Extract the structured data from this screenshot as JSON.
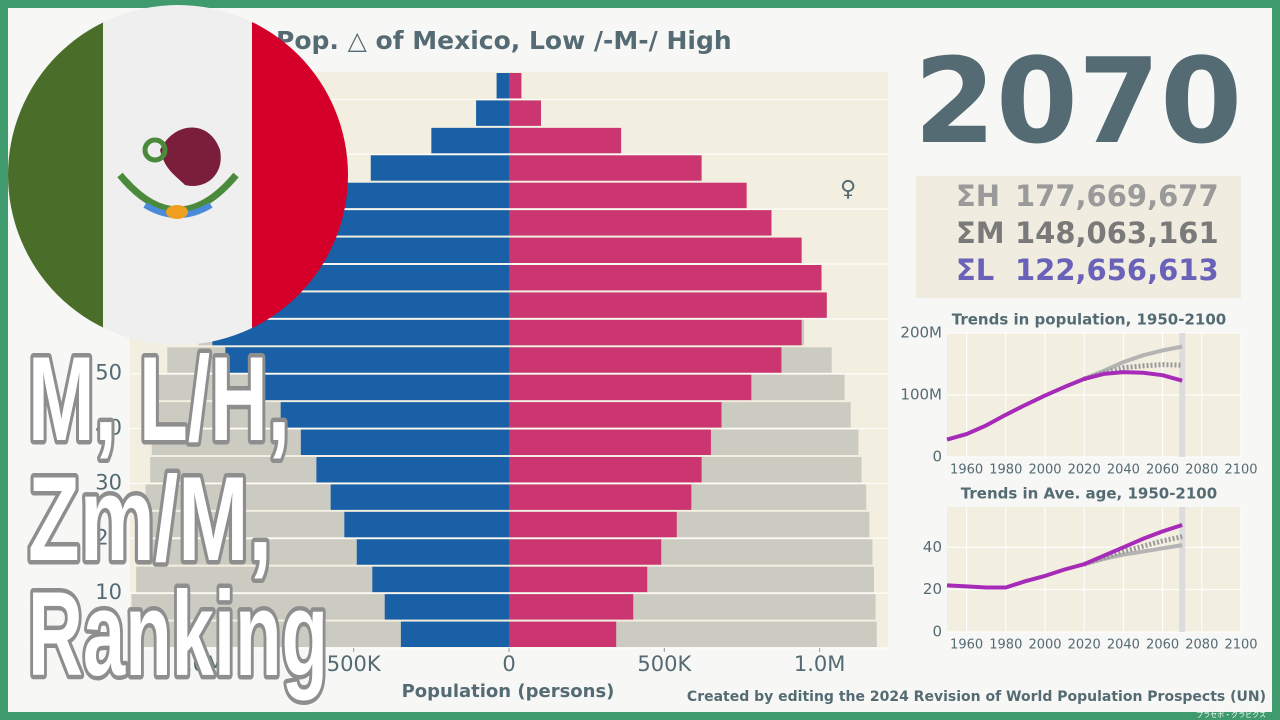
{
  "year": "2070",
  "totals": [
    {
      "label": "ΣH",
      "value": "177,669,677",
      "color": "#9a9a9a"
    },
    {
      "label": "ΣM",
      "value": "148,063,161",
      "color": "#7a7a7a"
    },
    {
      "label": "ΣL",
      "value": "122,656,613",
      "color": "#6a62b8"
    }
  ],
  "overlay": [
    "M, L/H,",
    "Zm/M,",
    "Ranking"
  ],
  "female_symbol": "♀",
  "credit": "Created by editing the 2024 Revision of World Population Prospects (UN)",
  "watermark": "プラセボ・グラビクス",
  "chart_data": [
    {
      "type": "pyramid",
      "title": "Pop. △ of Mexico, Low /-M-/ High",
      "x_label": "Population (persons)",
      "ages": [
        0,
        5,
        10,
        15,
        20,
        25,
        30,
        35,
        40,
        45,
        50,
        55,
        60,
        65,
        70,
        75,
        80,
        85,
        90,
        95,
        100
      ],
      "xlim": [
        -1220000,
        1220000
      ],
      "xticks": [
        {
          "value": -1000000,
          "label": "1.0M"
        },
        {
          "value": -500000,
          "label": "500K"
        },
        0,
        {
          "value": 500000,
          "label": "500K"
        },
        {
          "value": 1000000,
          "label": "1.0M"
        }
      ],
      "ylim": [
        0,
        105
      ],
      "yticks": [
        0,
        10,
        20,
        30,
        40,
        50,
        60,
        70,
        80,
        90,
        100
      ],
      "series": [
        {
          "side": "left",
          "color": "#cbcbc2",
          "values": [
            1220000,
            1215000,
            1200000,
            1190000,
            1180000,
            1170000,
            1155000,
            1150000,
            1150000,
            1140000,
            1100000,
            1000000,
            null,
            null,
            null,
            null,
            null,
            null,
            null,
            null,
            null
          ]
        },
        {
          "side": "right",
          "color": "#cbcbc2",
          "values": [
            1184000,
            1180000,
            1175000,
            1170000,
            1160000,
            1150000,
            1135000,
            1125000,
            1100000,
            1080000,
            1039000,
            950000,
            null,
            null,
            null,
            null,
            null,
            null,
            null,
            null,
            null
          ]
        },
        {
          "side": "left",
          "color": "#1a60a6",
          "values": [
            348000,
            400000,
            440000,
            490000,
            530000,
            574000,
            620000,
            670000,
            735000,
            830000,
            913000,
            955000,
            945000,
            897000,
            832000,
            735000,
            606000,
            445000,
            250000,
            106000,
            40000
          ]
        },
        {
          "side": "right",
          "color": "#cc3670",
          "values": [
            345000,
            400000,
            445000,
            490000,
            540000,
            587000,
            620000,
            650000,
            684000,
            780000,
            877000,
            942000,
            1023000,
            1006000,
            942000,
            845000,
            765000,
            620000,
            361000,
            103000,
            40000
          ]
        }
      ]
    },
    {
      "type": "line",
      "title": "Trends in population, 1950-2100",
      "x": [
        1950,
        1960,
        1970,
        1980,
        1990,
        2000,
        2010,
        2020,
        2030,
        2040,
        2050,
        2060,
        2070
      ],
      "xlim": [
        1950,
        2100
      ],
      "xticks": [
        1960,
        1980,
        2000,
        2020,
        2040,
        2060,
        2080,
        2100
      ],
      "ylim": [
        0,
        200000000
      ],
      "yticks": [
        0,
        {
          "value": 100000000,
          "label": "100M"
        },
        {
          "value": 200000000,
          "label": "200M"
        }
      ],
      "highlight_x": 2070,
      "series": [
        {
          "color": "#b4b4b4",
          "style": "solid",
          "values": [
            null,
            null,
            null,
            null,
            null,
            null,
            null,
            126000000,
            139000000,
            153000000,
            164000000,
            172000000,
            178000000
          ]
        },
        {
          "color": "#9a9a9a",
          "style": "dotted",
          "values": [
            null,
            null,
            null,
            null,
            null,
            null,
            null,
            126000000,
            136000000,
            144000000,
            147000000,
            149000000,
            148000000
          ]
        },
        {
          "color": "#a62bb8",
          "style": "solid",
          "values": [
            28000000,
            37000000,
            51000000,
            68000000,
            84000000,
            99000000,
            113000000,
            126000000,
            134000000,
            137000000,
            136000000,
            132000000,
            123000000
          ]
        }
      ]
    },
    {
      "type": "line",
      "title": "Trends in Ave. age, 1950-2100",
      "x": [
        1950,
        1960,
        1970,
        1980,
        1990,
        2000,
        2010,
        2020,
        2030,
        2040,
        2050,
        2060,
        2070
      ],
      "xlim": [
        1950,
        2100
      ],
      "xticks": [
        1960,
        1980,
        2000,
        2020,
        2040,
        2060,
        2080,
        2100
      ],
      "ylim": [
        0,
        59
      ],
      "yticks": [
        0,
        20,
        40
      ],
      "highlight_x": 2070,
      "series": [
        {
          "color": "#b4b4b4",
          "style": "solid",
          "values": [
            null,
            null,
            null,
            null,
            null,
            null,
            null,
            32,
            34.5,
            36.5,
            38,
            39.5,
            41
          ]
        },
        {
          "color": "#9a9a9a",
          "style": "dotted",
          "values": [
            null,
            null,
            null,
            null,
            null,
            null,
            null,
            32,
            35,
            38,
            40.5,
            43,
            45
          ]
        },
        {
          "color": "#a62bb8",
          "style": "solid",
          "values": [
            22,
            21.5,
            21,
            21,
            24,
            26.5,
            29.5,
            32,
            36,
            40,
            44,
            47.5,
            50.5
          ]
        }
      ]
    }
  ]
}
